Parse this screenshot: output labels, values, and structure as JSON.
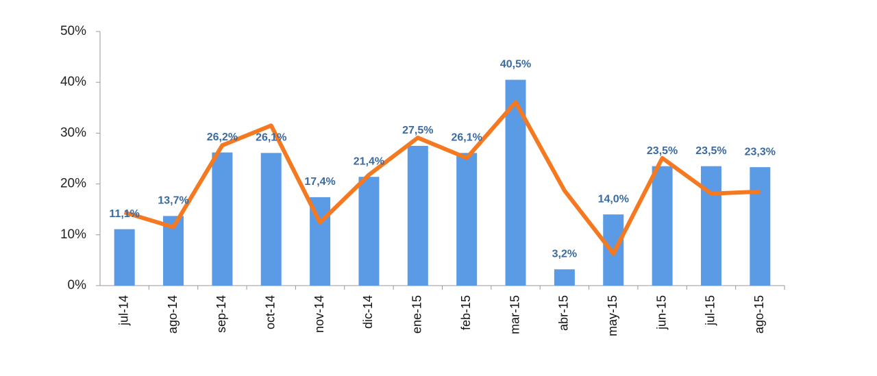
{
  "chart_data": {
    "type": "bar-line",
    "categories": [
      "jul-14",
      "ago-14",
      "sep-14",
      "oct-14",
      "nov-14",
      "dic-14",
      "ene-15",
      "feb-15",
      "mar-15",
      "abr-15",
      "may-15",
      "jun-15",
      "jul-15",
      "ago-15"
    ],
    "series": [
      {
        "type": "bar",
        "color": "#5b9be6",
        "values": [
          11.1,
          13.7,
          26.2,
          26.1,
          17.4,
          21.4,
          27.5,
          26.1,
          40.5,
          3.2,
          14.0,
          23.5,
          23.5,
          23.3
        ],
        "value_labels": [
          "11,1%",
          "13,7%",
          "26,2%",
          "26,1%",
          "17,4%",
          "21,4%",
          "27,5%",
          "26,1%",
          "40,5%",
          "3,2%",
          "14,0%",
          "23,5%",
          "23,5%",
          "23,3%"
        ]
      },
      {
        "type": "line",
        "color": "#f47920",
        "values": [
          14.4,
          11.5,
          27.6,
          31.5,
          12.4,
          21.8,
          29.1,
          25.1,
          36.1,
          18.7,
          6.3,
          25.1,
          18.1,
          18.5
        ]
      }
    ],
    "ylim": [
      0,
      50
    ],
    "yticks": [
      {
        "value": 0,
        "label": "0%"
      },
      {
        "value": 10,
        "label": "10%"
      },
      {
        "value": 20,
        "label": "20%"
      },
      {
        "value": 30,
        "label": "30%"
      },
      {
        "value": 40,
        "label": "40%"
      },
      {
        "value": 50,
        "label": "50%"
      }
    ]
  }
}
